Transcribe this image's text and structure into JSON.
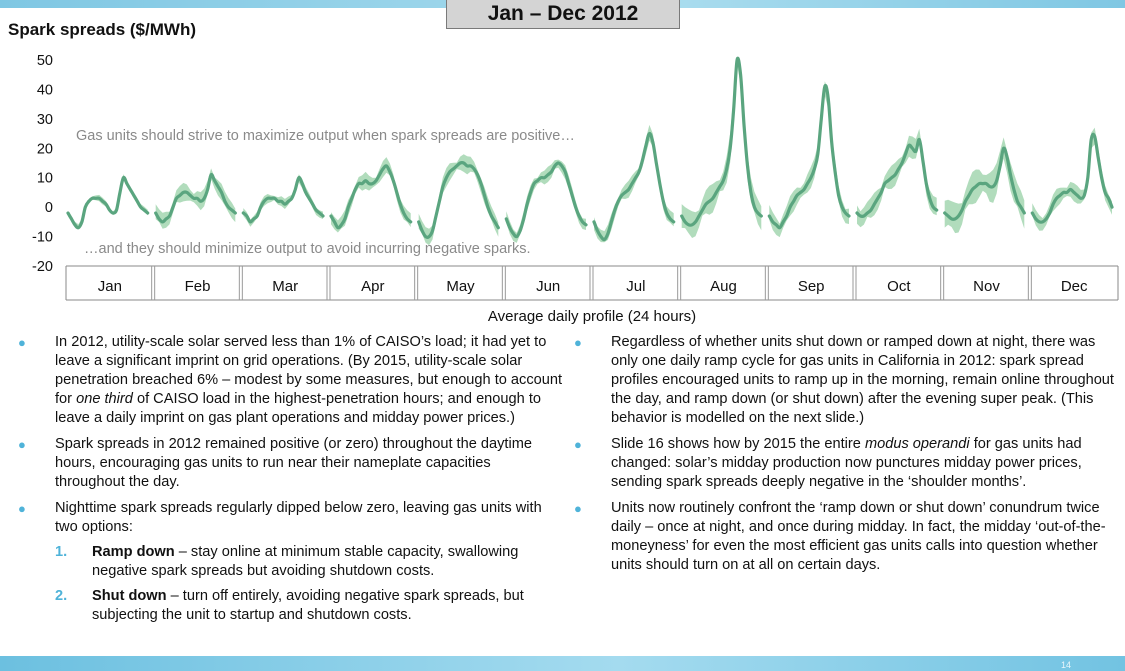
{
  "header": {
    "date_range": "Jan – Dec 2012"
  },
  "chart_title": "Spark spreads ($/MWh)",
  "chart_data": {
    "type": "line",
    "ylim": [
      -20,
      50
    ],
    "yticks": [
      "50",
      "40",
      "30",
      "20",
      "10",
      "0",
      "-10",
      "-20"
    ],
    "grid": false,
    "xlabel": "Average daily profile (24 hours)",
    "categories": [
      "Jan",
      "Feb",
      "Mar",
      "Apr",
      "May",
      "Jun",
      "Jul",
      "Aug",
      "Sep",
      "Oct",
      "Nov",
      "Dec"
    ],
    "series": [
      {
        "values": [
          [
            -2,
            -4,
            -6,
            -7,
            -5,
            0,
            2,
            3,
            3,
            3,
            2,
            1,
            -1,
            -2,
            -1,
            5,
            10,
            8,
            6,
            4,
            2,
            0,
            -1,
            -2
          ],
          [
            -2,
            -4,
            -5,
            -4,
            -3,
            0,
            3,
            4,
            5,
            5,
            4,
            3,
            3,
            2,
            3,
            6,
            11,
            9,
            7,
            5,
            2,
            0,
            -1,
            -2
          ],
          [
            -2,
            -3,
            -5,
            -4,
            -3,
            0,
            2,
            3,
            3,
            3,
            2,
            2,
            1,
            2,
            3,
            6,
            10,
            8,
            5,
            3,
            1,
            -1,
            -2,
            -3
          ],
          [
            -3,
            -5,
            -7,
            -6,
            -4,
            0,
            3,
            6,
            8,
            8,
            9,
            8,
            8,
            9,
            11,
            13,
            14,
            12,
            9,
            5,
            1,
            -2,
            -4,
            -5
          ],
          [
            -5,
            -8,
            -10,
            -10,
            -8,
            -3,
            2,
            7,
            10,
            12,
            13,
            14,
            15,
            15,
            14,
            14,
            13,
            11,
            8,
            4,
            0,
            -3,
            -5,
            -7
          ],
          [
            -4,
            -7,
            -9,
            -10,
            -8,
            -4,
            1,
            5,
            8,
            9,
            10,
            10,
            11,
            12,
            14,
            15,
            14,
            12,
            8,
            4,
            0,
            -3,
            -5,
            -6
          ],
          [
            -5,
            -8,
            -10,
            -11,
            -9,
            -5,
            -1,
            2,
            4,
            5,
            6,
            8,
            10,
            12,
            16,
            21,
            25,
            22,
            15,
            8,
            2,
            -2,
            -4,
            -5
          ],
          [
            -3,
            -5,
            -6,
            -6,
            -5,
            -3,
            -1,
            1,
            2,
            3,
            5,
            7,
            9,
            13,
            20,
            33,
            50,
            45,
            28,
            14,
            5,
            0,
            -2,
            -3
          ],
          [
            -3,
            -5,
            -6,
            -7,
            -5,
            -3,
            0,
            2,
            4,
            5,
            6,
            8,
            10,
            13,
            18,
            30,
            41,
            37,
            22,
            12,
            4,
            0,
            -2,
            -3
          ],
          [
            -2,
            -3,
            -3,
            -2,
            -1,
            1,
            3,
            5,
            8,
            9,
            10,
            11,
            13,
            15,
            18,
            21,
            20,
            19,
            23,
            16,
            8,
            3,
            0,
            -1
          ],
          [
            -2,
            -3,
            -4,
            -4,
            -3,
            -1,
            2,
            4,
            6,
            7,
            8,
            8,
            8,
            7,
            7,
            9,
            14,
            20,
            17,
            11,
            6,
            2,
            0,
            -2
          ],
          [
            -2,
            -4,
            -5,
            -5,
            -4,
            -2,
            1,
            3,
            4,
            5,
            5,
            6,
            5,
            4,
            3,
            4,
            10,
            23,
            24,
            17,
            10,
            5,
            3,
            0
          ]
        ]
      }
    ],
    "annotations": [
      "Gas units should strive to maximize output when spark spreads are positive…",
      "…and they should minimize output to avoid incurring negative sparks."
    ]
  },
  "bullets_left": [
    {
      "text": "In 2012, utility-scale solar served less than 1% of CAISO’s load; it had yet to leave a significant imprint on grid operations. (By 2015, utility-scale solar penetration breached 6% – modest by some measures, but enough to account for",
      "italic": "one third",
      "text2": "of CAISO load in the highest-penetration hours; and enough to leave a daily imprint on gas plant operations and midday power prices.)"
    },
    {
      "text": "Spark spreads in 2012 remained positive (or zero) throughout the daytime hours, encouraging gas units to run near their nameplate capacities throughout the day."
    },
    {
      "text": "Nighttime spark spreads regularly dipped below zero, leaving gas units with two options:"
    }
  ],
  "sub_items": [
    {
      "num": "1.",
      "bold": "Ramp down",
      "text": "– stay online at minimum stable capacity, swallowing negative spark spreads but avoiding shutdown costs."
    },
    {
      "num": "2.",
      "bold": "Shut down",
      "text": "– turn off entirely, avoiding negative spark spreads, but subjecting the unit to startup and shutdown costs."
    }
  ],
  "bullets_right": [
    {
      "text": "Regardless of whether units shut down or ramped down at night, there was only one daily ramp cycle for gas units in California in 2012: spark spread profiles encouraged units to ramp up in the morning, remain online throughout the day, and ramp down (or shut down) after the evening super peak. (This behavior is modelled on the next slide.)"
    },
    {
      "text": "Slide 16 shows how by 2015 the entire",
      "italic": "modus operandi",
      "text2": "for gas units had changed: solar’s midday production now punctures midday power prices, sending spark spreads deeply negative in the ‘shoulder months’."
    },
    {
      "text": "Units now routinely confront the ‘ramp down or shut down’ conundrum twice daily – once at night, and once during midday. In fact, the midday ‘out-of-the-moneyness’ for even the most efficient gas units calls into question whether units should turn on at all on certain days."
    }
  ],
  "bullet_symbol": "●",
  "page_number": "14",
  "colors": {
    "line": "#5aa57f",
    "band": "#a8d8b5",
    "accent": "#4fb3d9",
    "annotation": "#8a8a8a"
  }
}
